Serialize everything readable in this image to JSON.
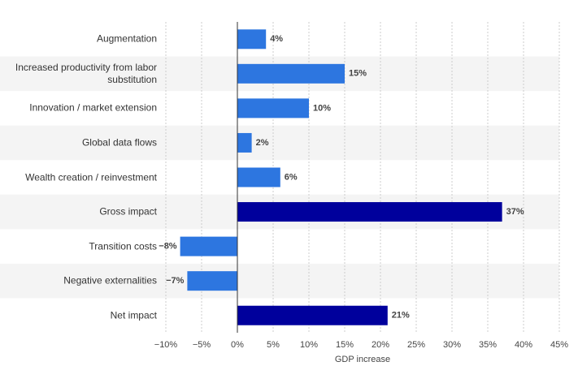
{
  "chart_data": {
    "type": "bar",
    "orientation": "horizontal",
    "categories": [
      "Augmentation",
      "Increased productivity from labor substitution",
      "Innovation / market extension",
      "Global data flows",
      "Wealth creation / reinvestment",
      "Gross impact",
      "Transition costs",
      "Negative externalities",
      "Net impact"
    ],
    "values": [
      4,
      15,
      10,
      2,
      6,
      37,
      -8,
      -7,
      21
    ],
    "value_labels": [
      "4%",
      "15%",
      "10%",
      "2%",
      "6%",
      "37%",
      "−8%",
      "−7%",
      "21%"
    ],
    "colors": [
      "#2d76e0",
      "#2d76e0",
      "#2d76e0",
      "#2d76e0",
      "#2d76e0",
      "#00009c",
      "#2d76e0",
      "#2d76e0",
      "#00009c"
    ],
    "xlabel": "GDP increase",
    "xlim": [
      -10,
      45
    ],
    "xticks": [
      {
        "value": -10,
        "label": "−10%"
      },
      {
        "value": -5,
        "label": "−5%"
      },
      {
        "value": 0,
        "label": "0%"
      },
      {
        "value": 5,
        "label": "5%"
      },
      {
        "value": 10,
        "label": "10%"
      },
      {
        "value": 15,
        "label": "15%"
      },
      {
        "value": 20,
        "label": "20%"
      },
      {
        "value": 25,
        "label": "25%"
      },
      {
        "value": 30,
        "label": "30%"
      },
      {
        "value": 35,
        "label": "35%"
      },
      {
        "value": 40,
        "label": "40%"
      },
      {
        "value": 45,
        "label": "45%"
      }
    ],
    "grid": true
  }
}
